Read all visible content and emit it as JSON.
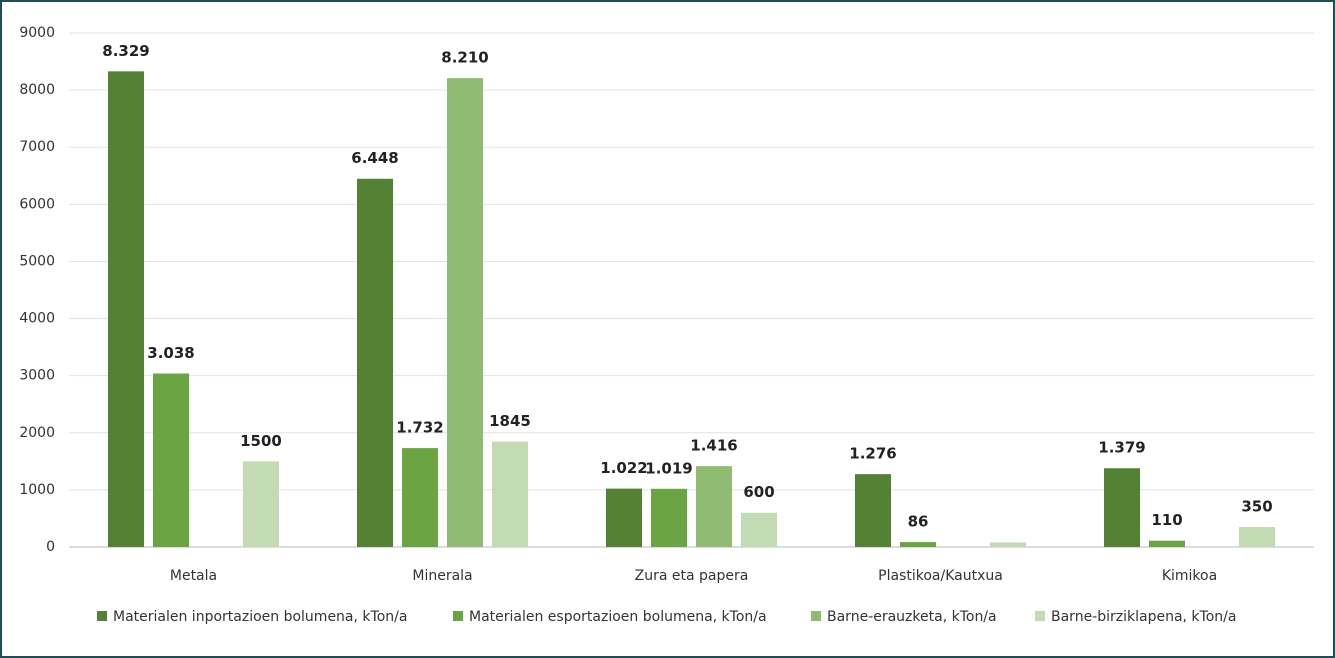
{
  "chart_data": {
    "type": "bar",
    "categories": [
      "Metala",
      "Minerala",
      "Zura eta papera",
      "Plastikoa/Kautxua",
      "Kimikoa"
    ],
    "series": [
      {
        "name": "Materialen inportazioen bolumena, kTon/a",
        "color": "#548235",
        "values": [
          8329,
          6448,
          1022,
          1276,
          1379
        ],
        "value_labels": [
          "8.329",
          "6.448",
          "1.022",
          "1.276",
          "1.379"
        ]
      },
      {
        "name": "Materialen esportazioen bolumena, kTon/a",
        "color": "#6aa443",
        "values": [
          3038,
          1732,
          1019,
          86,
          110
        ],
        "value_labels": [
          "3.038",
          "1.732",
          "1.019",
          "86",
          "110"
        ]
      },
      {
        "name": "Barne-erauzketa, kTon/a",
        "color": "#8fbc72",
        "values": [
          null,
          8210,
          1416,
          null,
          null
        ],
        "value_labels": [
          null,
          "8.210",
          "1.416",
          null,
          null
        ]
      },
      {
        "name": "Barne-birziklapena, kTon/a",
        "color": "#c3dbb3",
        "values": [
          1500,
          1845,
          600,
          80,
          350
        ],
        "value_labels": [
          "1500",
          "1845",
          "600",
          null,
          "350"
        ]
      }
    ],
    "ylim": [
      0,
      9000
    ],
    "yticks": [
      0,
      1000,
      2000,
      3000,
      4000,
      5000,
      6000,
      7000,
      8000,
      9000
    ],
    "grid": true,
    "legend": "bottom"
  }
}
